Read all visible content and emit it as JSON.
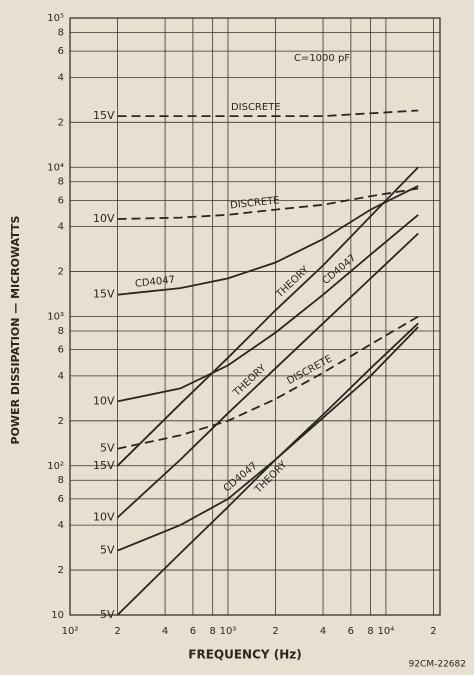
{
  "chart_data": {
    "type": "line",
    "xlabel": "FREQUENCY (Hz)",
    "ylabel": "POWER DISSIPATION — MICROWATTS",
    "annotations": [
      "C=1000 pF",
      "92CM-22682"
    ],
    "log_x": true,
    "log_y": true,
    "grid": true,
    "color": "#2a2622",
    "xlim": [
      100,
      22000
    ],
    "ylim": [
      10,
      100000
    ],
    "xticks": [
      {
        "value": 100,
        "label": "10²"
      },
      {
        "value": 200,
        "label": "2"
      },
      {
        "value": 400,
        "label": "4"
      },
      {
        "value": 600,
        "label": "6"
      },
      {
        "value": 800,
        "label": "8"
      },
      {
        "value": 1000,
        "label": "10³"
      },
      {
        "value": 2000,
        "label": "2"
      },
      {
        "value": 4000,
        "label": "4"
      },
      {
        "value": 6000,
        "label": "6"
      },
      {
        "value": 8000,
        "label": "8"
      },
      {
        "value": 10000,
        "label": "10⁴"
      },
      {
        "value": 20000,
        "label": "2"
      }
    ],
    "yticks": [
      10,
      {
        "value": 20,
        "label": "2"
      },
      {
        "value": 40,
        "label": "4"
      },
      {
        "value": 60,
        "label": "6"
      },
      {
        "value": 80,
        "label": "8"
      },
      {
        "value": 100,
        "label": "10²"
      },
      {
        "value": 200,
        "label": "2"
      },
      {
        "value": 400,
        "label": "4"
      },
      {
        "value": 600,
        "label": "6"
      },
      {
        "value": 800,
        "label": "8"
      },
      {
        "value": 1000,
        "label": "10³"
      },
      {
        "value": 2000,
        "label": "2"
      },
      {
        "value": 4000,
        "label": "4"
      },
      {
        "value": 6000,
        "label": "6"
      },
      {
        "value": 8000,
        "label": "8"
      },
      {
        "value": 10000,
        "label": "10⁴"
      },
      {
        "value": 20000,
        "label": "2"
      },
      {
        "value": 40000,
        "label": "4"
      },
      {
        "value": 60000,
        "label": "6"
      },
      {
        "value": 80000,
        "label": "8"
      },
      {
        "value": 100000,
        "label": "10⁵"
      }
    ],
    "x": [
      200,
      500,
      1000,
      2000,
      4000,
      8000,
      16000
    ],
    "series": [
      {
        "name": "15V",
        "label": "DISCRETE",
        "dashed": true,
        "values": [
          22000,
          22000,
          22000,
          22000,
          22000,
          23000,
          24000
        ]
      },
      {
        "name": "10V",
        "label": "DISCRETE",
        "dashed": true,
        "values": [
          4500,
          4600,
          4800,
          5200,
          5600,
          6400,
          7200
        ]
      },
      {
        "name": "15V",
        "label": "CD4047",
        "dashed": false,
        "values": [
          1400,
          1550,
          1800,
          2300,
          3300,
          5200,
          7500
        ]
      },
      {
        "name": "10V",
        "label": "CD4047",
        "dashed": false,
        "values": [
          270,
          330,
          470,
          780,
          1400,
          2600,
          4800
        ]
      },
      {
        "name": "5V",
        "label": "DISCRETE",
        "dashed": true,
        "values": [
          130,
          160,
          200,
          280,
          420,
          650,
          1000
        ]
      },
      {
        "name": "15V",
        "label": "THEORY",
        "dashed": false,
        "values": [
          100,
          260,
          530,
          1100,
          2200,
          4700,
          10000
        ]
      },
      {
        "name": "10V",
        "label": "THEORY",
        "dashed": false,
        "values": [
          45,
          110,
          225,
          450,
          900,
          1800,
          3600
        ]
      },
      {
        "name": "5V",
        "label": "CD4047",
        "dashed": false,
        "values": [
          27,
          40,
          60,
          110,
          210,
          400,
          850
        ]
      },
      {
        "name": "5V",
        "label": "THEORY",
        "dashed": false,
        "values": [
          10,
          26,
          53,
          110,
          220,
          450,
          900
        ]
      }
    ]
  }
}
